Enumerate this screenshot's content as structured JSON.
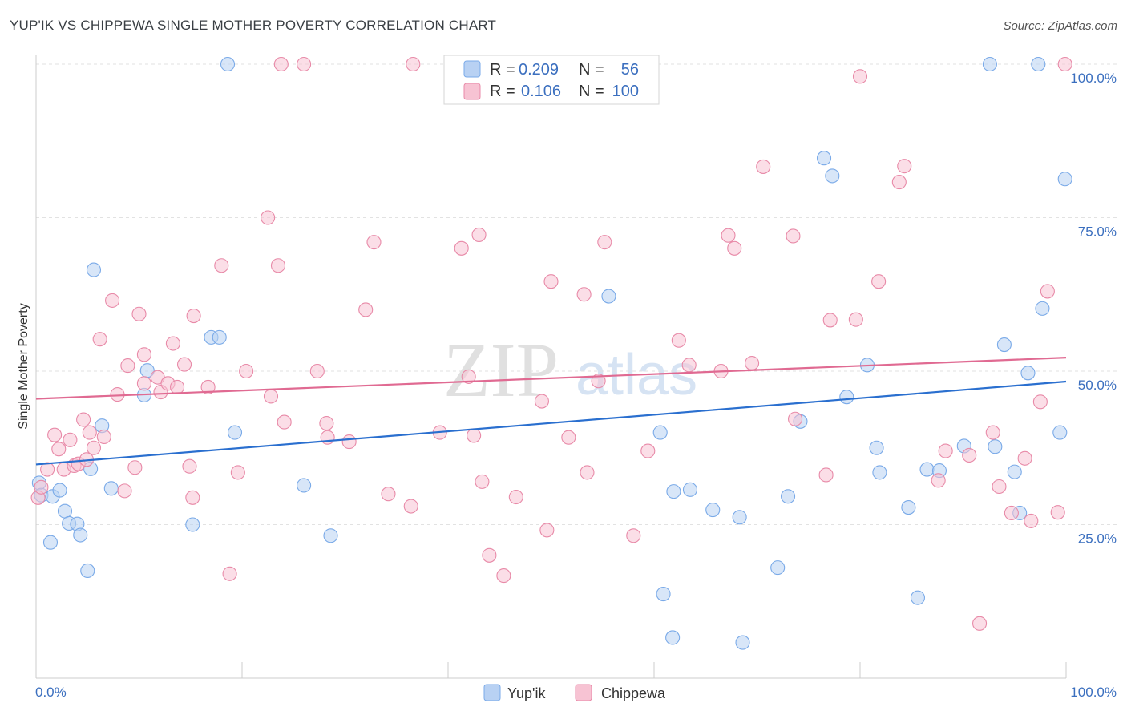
{
  "header": {
    "title": "YUP'IK VS CHIPPEWA SINGLE MOTHER POVERTY CORRELATION CHART",
    "source": "Source: ZipAtlas.com"
  },
  "watermark": {
    "zip": "ZIP",
    "atlas": "atlas"
  },
  "legend_top": {
    "r_label": "R =",
    "n_label": "N =",
    "rows": [
      {
        "r": "0.209",
        "n": "56",
        "color": "#7aaae8",
        "fill": "#b8d1f3"
      },
      {
        "r": "0.106",
        "n": "100",
        "color": "#e88aa8",
        "fill": "#f7c3d3"
      }
    ]
  },
  "chart_data": {
    "type": "scatter",
    "title": "YUP'IK VS CHIPPEWA SINGLE MOTHER POVERTY CORRELATION CHART",
    "xlabel": "",
    "ylabel": "Single Mother Poverty",
    "xlim": [
      0,
      100
    ],
    "ylim": [
      0,
      100
    ],
    "x_tick_labels": [
      "0.0%",
      "100.0%"
    ],
    "y_tick_labels": [
      "25.0%",
      "50.0%",
      "75.0%",
      "100.0%"
    ],
    "y_ticks": [
      25,
      50,
      75,
      100
    ],
    "grid": true,
    "legend_placement": "bottom-center",
    "series": [
      {
        "name": "Yup'ik",
        "color": "#7aaae8",
        "fill": "#b8d1f3",
        "line_color": "#2a6fcf",
        "trend": {
          "y_at_0": 34.8,
          "y_at_100": 48.3
        },
        "points": [
          [
            0.3,
            31.8
          ],
          [
            0.5,
            29.8
          ],
          [
            1.4,
            22.1
          ],
          [
            1.6,
            29.6
          ],
          [
            2.3,
            30.6
          ],
          [
            2.8,
            27.2
          ],
          [
            3.2,
            25.2
          ],
          [
            4.0,
            25.1
          ],
          [
            4.3,
            23.3
          ],
          [
            5.0,
            17.5
          ],
          [
            5.3,
            34.1
          ],
          [
            5.6,
            66.5
          ],
          [
            6.4,
            41.1
          ],
          [
            7.3,
            30.9
          ],
          [
            10.5,
            46.1
          ],
          [
            10.8,
            50.1
          ],
          [
            15.2,
            25.0
          ],
          [
            17.0,
            55.5
          ],
          [
            17.8,
            55.5
          ],
          [
            18.6,
            100.0
          ],
          [
            19.3,
            40.0
          ],
          [
            26.0,
            31.4
          ],
          [
            28.6,
            23.2
          ],
          [
            55.6,
            62.2
          ],
          [
            60.6,
            40.0
          ],
          [
            60.9,
            13.7
          ],
          [
            61.9,
            30.4
          ],
          [
            61.8,
            6.6
          ],
          [
            63.5,
            30.7
          ],
          [
            65.7,
            27.4
          ],
          [
            68.3,
            26.2
          ],
          [
            68.6,
            5.8
          ],
          [
            72.0,
            18.0
          ],
          [
            73.0,
            29.6
          ],
          [
            74.2,
            41.8
          ],
          [
            76.5,
            84.7
          ],
          [
            77.3,
            81.8
          ],
          [
            78.7,
            45.8
          ],
          [
            80.7,
            51.0
          ],
          [
            81.6,
            37.5
          ],
          [
            81.9,
            33.5
          ],
          [
            84.7,
            27.8
          ],
          [
            85.6,
            13.1
          ],
          [
            86.5,
            34.0
          ],
          [
            87.7,
            33.8
          ],
          [
            90.1,
            37.8
          ],
          [
            92.6,
            100.0
          ],
          [
            93.1,
            37.7
          ],
          [
            94.0,
            54.3
          ],
          [
            95.0,
            33.6
          ],
          [
            95.5,
            26.9
          ],
          [
            96.3,
            49.7
          ],
          [
            97.3,
            100.0
          ],
          [
            97.7,
            60.2
          ],
          [
            99.4,
            40.0
          ],
          [
            99.9,
            81.3
          ]
        ]
      },
      {
        "name": "Chippewa",
        "color": "#e88aa8",
        "fill": "#f7c3d3",
        "line_color": "#e06a92",
        "trend": {
          "y_at_0": 45.5,
          "y_at_100": 52.2
        },
        "points": [
          [
            0.2,
            29.4
          ],
          [
            0.5,
            31.1
          ],
          [
            1.1,
            34.0
          ],
          [
            1.8,
            39.6
          ],
          [
            2.2,
            37.3
          ],
          [
            2.7,
            34.0
          ],
          [
            3.3,
            38.8
          ],
          [
            3.7,
            34.6
          ],
          [
            4.1,
            34.9
          ],
          [
            4.6,
            42.1
          ],
          [
            4.9,
            35.6
          ],
          [
            5.2,
            40.0
          ],
          [
            5.6,
            37.5
          ],
          [
            6.2,
            55.2
          ],
          [
            6.6,
            39.3
          ],
          [
            7.4,
            61.5
          ],
          [
            7.9,
            46.2
          ],
          [
            8.6,
            30.5
          ],
          [
            8.9,
            50.9
          ],
          [
            9.6,
            34.3
          ],
          [
            10.0,
            59.3
          ],
          [
            10.5,
            48.0
          ],
          [
            10.5,
            52.7
          ],
          [
            11.8,
            49.0
          ],
          [
            12.1,
            46.6
          ],
          [
            12.8,
            48.0
          ],
          [
            13.3,
            54.5
          ],
          [
            13.7,
            47.4
          ],
          [
            14.4,
            51.1
          ],
          [
            14.9,
            34.5
          ],
          [
            15.2,
            29.4
          ],
          [
            15.3,
            59.0
          ],
          [
            16.7,
            47.4
          ],
          [
            18.0,
            67.2
          ],
          [
            18.8,
            17.0
          ],
          [
            19.6,
            33.5
          ],
          [
            20.4,
            50.0
          ],
          [
            22.5,
            75.0
          ],
          [
            22.8,
            45.9
          ],
          [
            23.5,
            67.2
          ],
          [
            23.8,
            100.0
          ],
          [
            24.1,
            41.7
          ],
          [
            26.0,
            100.0
          ],
          [
            27.3,
            50.0
          ],
          [
            28.2,
            41.5
          ],
          [
            28.3,
            39.2
          ],
          [
            30.4,
            38.5
          ],
          [
            32.0,
            60.0
          ],
          [
            32.8,
            71.0
          ],
          [
            34.2,
            30.0
          ],
          [
            36.4,
            28.0
          ],
          [
            36.6,
            100.0
          ],
          [
            39.2,
            40.0
          ],
          [
            41.3,
            70.0
          ],
          [
            42.0,
            49.1
          ],
          [
            42.5,
            39.5
          ],
          [
            43.0,
            72.2
          ],
          [
            43.3,
            32.0
          ],
          [
            44.0,
            20.0
          ],
          [
            45.4,
            16.7
          ],
          [
            46.6,
            29.5
          ],
          [
            49.1,
            45.1
          ],
          [
            49.6,
            24.1
          ],
          [
            50.0,
            64.6
          ],
          [
            51.7,
            39.2
          ],
          [
            53.2,
            62.5
          ],
          [
            53.5,
            33.5
          ],
          [
            54.6,
            48.4
          ],
          [
            55.2,
            71.0
          ],
          [
            58.0,
            23.2
          ],
          [
            59.4,
            37.0
          ],
          [
            62.4,
            55.0
          ],
          [
            63.4,
            51.0
          ],
          [
            66.5,
            50.0
          ],
          [
            67.2,
            72.1
          ],
          [
            67.8,
            70.0
          ],
          [
            69.5,
            51.3
          ],
          [
            70.6,
            83.3
          ],
          [
            73.5,
            72.0
          ],
          [
            73.7,
            42.2
          ],
          [
            76.7,
            33.1
          ],
          [
            77.1,
            58.3
          ],
          [
            79.6,
            58.4
          ],
          [
            80.0,
            98.0
          ],
          [
            81.8,
            64.6
          ],
          [
            83.8,
            80.8
          ],
          [
            84.3,
            83.4
          ],
          [
            87.6,
            32.2
          ],
          [
            88.3,
            37.0
          ],
          [
            90.6,
            36.3
          ],
          [
            91.6,
            8.9
          ],
          [
            92.9,
            40.0
          ],
          [
            93.5,
            31.2
          ],
          [
            94.7,
            26.9
          ],
          [
            96.0,
            35.8
          ],
          [
            96.6,
            25.6
          ],
          [
            97.5,
            45.0
          ],
          [
            98.2,
            63.0
          ],
          [
            99.2,
            27.0
          ],
          [
            99.9,
            100.0
          ]
        ]
      }
    ]
  }
}
